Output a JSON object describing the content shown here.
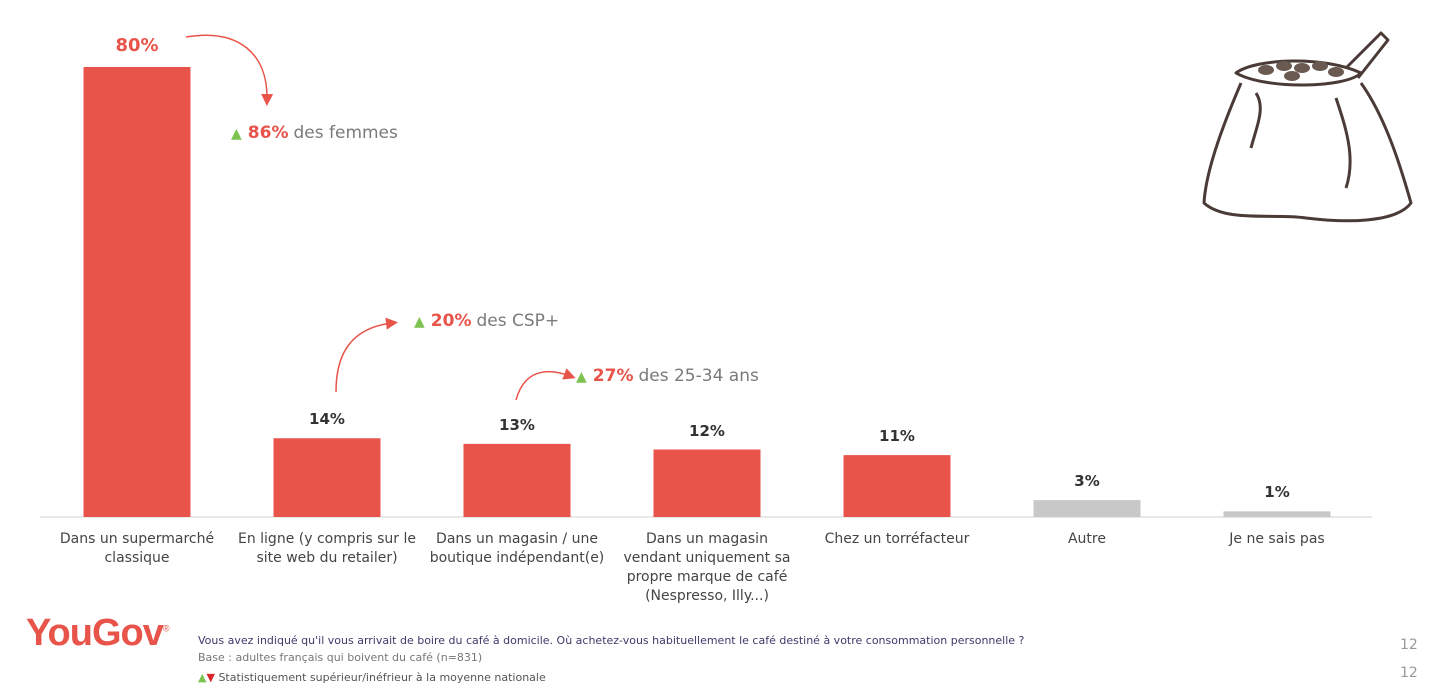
{
  "chart_data": {
    "type": "bar",
    "categories": [
      "Dans un supermarché classique",
      "En ligne (y compris sur le site web du retailer)",
      "Dans un magasin / une boutique indépendant(e)",
      "Dans un magasin vendant uniquement sa propre marque de café (Nespresso, Illy...)",
      "Chez un torréfacteur",
      "Autre",
      "Je ne sais pas"
    ],
    "values": [
      80,
      14,
      13,
      12,
      11,
      3,
      1
    ],
    "value_labels": [
      "80%",
      "14%",
      "13%",
      "12%",
      "11%",
      "3%",
      "1%"
    ],
    "ylim": [
      0,
      80
    ],
    "colors": [
      "#e8534a",
      "#e8534a",
      "#e8534a",
      "#e8534a",
      "#e8534a",
      "#c8c8c8",
      "#c8c8c8"
    ],
    "grid": false,
    "annotations": [
      {
        "pct": "86%",
        "text": "des femmes",
        "category_index": 0
      },
      {
        "pct": "20%",
        "text": "des CSP+",
        "category_index": 1
      },
      {
        "pct": "27%",
        "text": "des 25-34 ans",
        "category_index": 2
      }
    ]
  },
  "footer": {
    "logo": "YouGov",
    "question": "Vous avez indiqué qu'il vous arrivait de boire du café à domicile. Où achetez-vous habituellement le café destiné à votre consommation personnelle ?",
    "base": "Base : adultes français qui boivent du café (n=831)",
    "legend": "Statistiquement supérieur/inéfrieur à la moyenne nationale",
    "page_number": "12",
    "page_number_2": "12"
  },
  "colors": {
    "accent": "#e8534a",
    "up": "#7cc34f",
    "down": "#d9262a",
    "neutral": "#c8c8c8"
  }
}
